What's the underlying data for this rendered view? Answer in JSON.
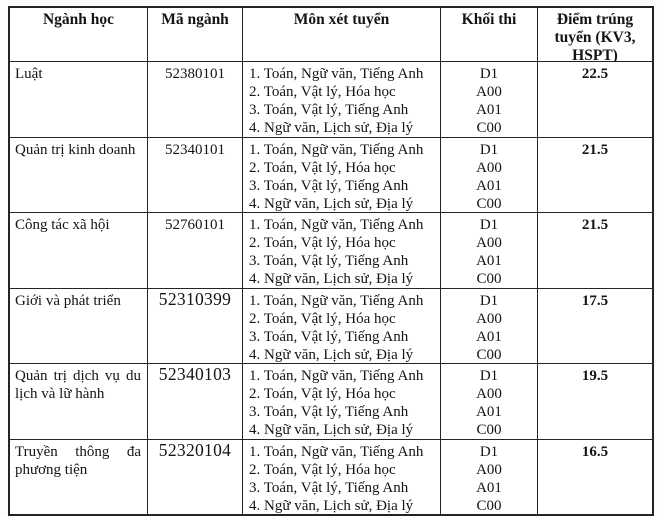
{
  "table": {
    "headers": {
      "major": "Ngành học",
      "code": "Mã ngành",
      "subjects": "Môn xét tuyển",
      "block": "Khối thi",
      "score": "Điểm trúng tuyển (KV3, HSPT)"
    },
    "rows": [
      {
        "major": "Luật",
        "code": "52380101",
        "subjects": [
          "1. Toán, Ngữ văn, Tiếng Anh",
          "2. Toán, Vật lý, Hóa học",
          "3. Toán, Vật lý, Tiếng Anh",
          "4. Ngữ văn, Lịch sử, Địa lý"
        ],
        "blocks": [
          "D1",
          "A00",
          "A01",
          "C00"
        ],
        "score": "22.5"
      },
      {
        "major": "Quản trị kinh doanh",
        "code": "52340101",
        "subjects": [
          "1. Toán, Ngữ văn, Tiếng Anh",
          "2. Toán, Vật lý, Hóa học",
          "3. Toán, Vật lý, Tiếng Anh",
          "4. Ngữ văn, Lịch sử, Địa lý"
        ],
        "blocks": [
          "D1",
          "A00",
          "A01",
          "C00"
        ],
        "score": "21.5"
      },
      {
        "major": "Công tác xã hội",
        "code": "52760101",
        "subjects": [
          "1. Toán, Ngữ văn, Tiếng Anh",
          "2. Toán, Vật lý, Hóa học",
          "3. Toán, Vật lý, Tiếng Anh",
          "4. Ngữ văn, Lịch sử, Địa lý"
        ],
        "blocks": [
          "D1",
          "A00",
          "A01",
          "C00"
        ],
        "score": "21.5"
      },
      {
        "major": "Giới và phát triển",
        "code": "52310399",
        "subjects": [
          "1. Toán, Ngữ văn, Tiếng Anh",
          "2. Toán, Vật lý, Hóa học",
          "3. Toán, Vật lý, Tiếng Anh",
          "4. Ngữ văn, Lịch sử, Địa lý"
        ],
        "blocks": [
          "D1",
          "A00",
          "A01",
          "C00"
        ],
        "score": "17.5"
      },
      {
        "major": "Quản trị dịch vụ du lịch và lữ hành",
        "code": "52340103",
        "subjects": [
          "1. Toán, Ngữ văn, Tiếng Anh",
          "2. Toán, Vật lý, Hóa học",
          "3. Toán, Vật lý, Tiếng Anh",
          "4. Ngữ văn, Lịch sử, Địa lý"
        ],
        "blocks": [
          "D1",
          "A00",
          "A01",
          "C00"
        ],
        "score": "19.5"
      },
      {
        "major": "Truyền thông đa phương tiện",
        "code": "52320104",
        "subjects": [
          "1. Toán, Ngữ văn, Tiếng Anh",
          "2. Toán, Vật lý, Hóa học",
          "3. Toán, Vật lý, Tiếng Anh",
          "4. Ngữ văn, Lịch sử, Địa lý"
        ],
        "blocks": [
          "D1",
          "A00",
          "A01",
          "C00"
        ],
        "score": "16.5"
      }
    ]
  }
}
